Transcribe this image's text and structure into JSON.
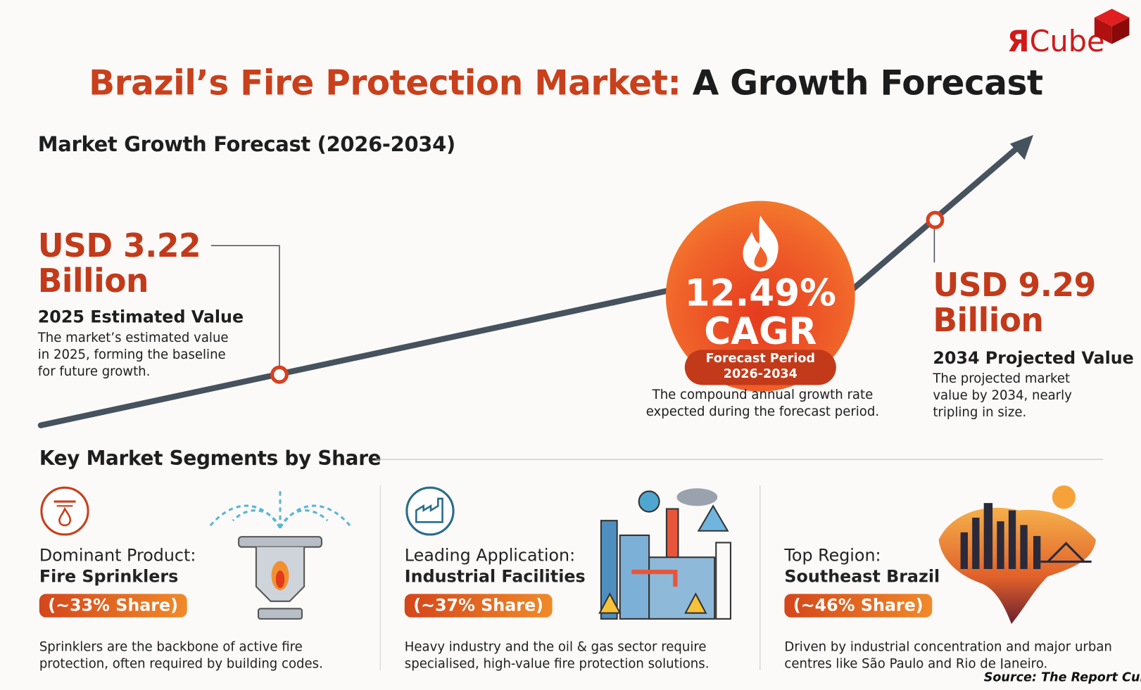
{
  "logo": {
    "mark": "Я",
    "text": "Cube"
  },
  "title": {
    "part1": "Brazil’s Fire Protection Market:",
    "part2": "A Growth Forecast"
  },
  "forecast_heading": "Market Growth Forecast (2026-2034)",
  "start_value": {
    "amount": "USD 3.22",
    "unit": "Billion",
    "label": "2025 Estimated Value",
    "description": "The market’s estimated value in 2025, forming the baseline for future growth."
  },
  "cagr": {
    "value": "12.49%",
    "label": "CAGR",
    "period_label": "Forecast Period",
    "period": "2026-2034",
    "description": "The compound annual growth rate expected during the forecast period."
  },
  "end_value": {
    "amount": "USD 9.29",
    "unit": "Billion",
    "label": "2034 Projected Value",
    "description": "The projected market value by 2034, nearly tripling in size."
  },
  "segments_heading": "Key Market Segments by Share",
  "segments": [
    {
      "category": "Dominant Product:",
      "name": "Fire Sprinklers",
      "share": "(~33% Share)",
      "description": "Sprinklers are the backbone of active fire protection, often required by building codes."
    },
    {
      "category": "Leading Application:",
      "name": "Industrial Facilities",
      "share": "(~37% Share)",
      "description": "Heavy industry and the oil & gas sector require specialised, high-value fire protection solutions."
    },
    {
      "category": "Top Region:",
      "name": "Southeast Brazil",
      "share": "(~46% Share)",
      "description": "Driven by industrial concentration and major urban centres like São Paulo and Rio de Janeiro."
    }
  ],
  "source": "Source: The Report Cube",
  "colors": {
    "accent": "#c8401c",
    "line": "#46525e",
    "badge_start": "#d4461b",
    "badge_end": "#f08a2a"
  }
}
